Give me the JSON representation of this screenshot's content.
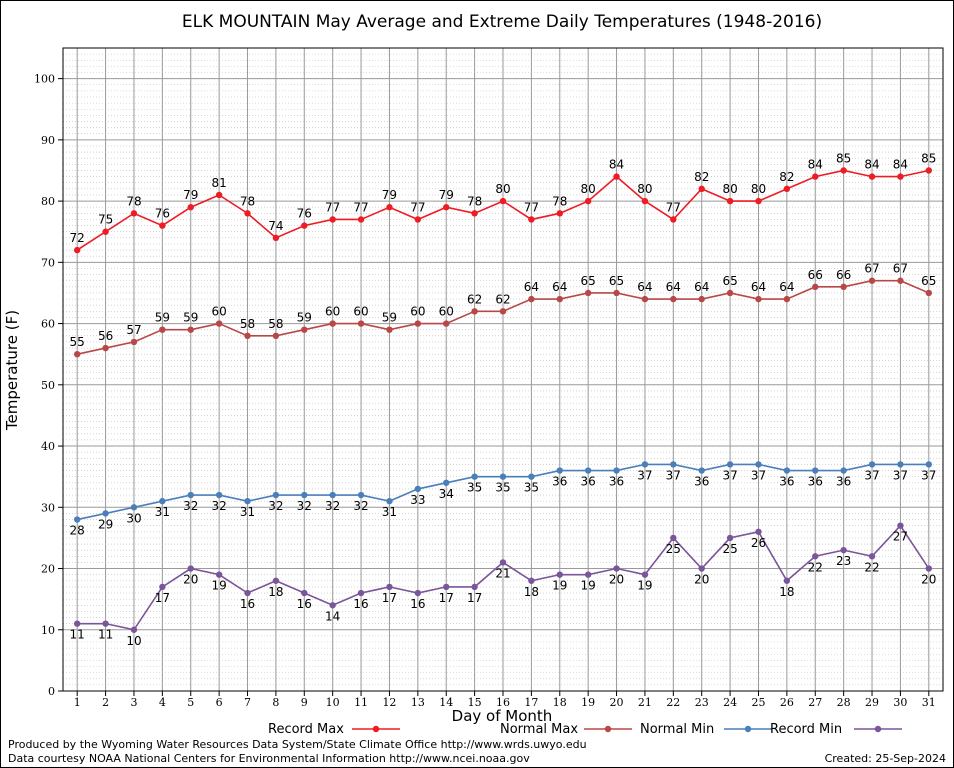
{
  "chart_data": {
    "type": "line",
    "title": "ELK MOUNTAIN May Average and Extreme Daily Temperatures (1948-2016)",
    "xlabel": "Day of Month",
    "ylabel": "Temperature (F)",
    "xlim": [
      0.5,
      31.5
    ],
    "ylim": [
      0,
      105
    ],
    "y_ticks": [
      0,
      10,
      20,
      30,
      40,
      50,
      60,
      70,
      80,
      90,
      100
    ],
    "x": [
      1,
      2,
      3,
      4,
      5,
      6,
      7,
      8,
      9,
      10,
      11,
      12,
      13,
      14,
      15,
      16,
      17,
      18,
      19,
      20,
      21,
      22,
      23,
      24,
      25,
      26,
      27,
      28,
      29,
      30,
      31
    ],
    "grid": true,
    "legend_position": "bottom",
    "series": [
      {
        "name": "Record Max",
        "color": "#ee1c24",
        "label_position": "above",
        "values": [
          72,
          75,
          78,
          76,
          79,
          81,
          78,
          74,
          76,
          77,
          77,
          79,
          77,
          79,
          78,
          80,
          77,
          78,
          80,
          84,
          80,
          77,
          82,
          80,
          80,
          82,
          84,
          85,
          84,
          84,
          85
        ]
      },
      {
        "name": "Normal Max",
        "color": "#b84848",
        "label_position": "above",
        "values": [
          55,
          56,
          57,
          59,
          59,
          60,
          58,
          58,
          59,
          60,
          60,
          59,
          60,
          60,
          62,
          62,
          64,
          64,
          65,
          65,
          64,
          64,
          64,
          65,
          64,
          64,
          66,
          66,
          67,
          67,
          65
        ]
      },
      {
        "name": "Normal Min",
        "color": "#4a7fba",
        "label_position": "below",
        "values": [
          28,
          29,
          30,
          31,
          32,
          32,
          31,
          32,
          32,
          32,
          32,
          31,
          33,
          34,
          35,
          35,
          35,
          36,
          36,
          36,
          37,
          37,
          36,
          37,
          37,
          36,
          36,
          36,
          37,
          37,
          37
        ]
      },
      {
        "name": "Record Min",
        "color": "#7a559a",
        "label_position": "below",
        "values": [
          11,
          11,
          10,
          17,
          20,
          19,
          16,
          18,
          16,
          14,
          16,
          17,
          16,
          17,
          17,
          21,
          18,
          19,
          19,
          20,
          19,
          25,
          20,
          25,
          26,
          18,
          22,
          23,
          22,
          27,
          20
        ]
      }
    ]
  },
  "footer": {
    "credit_line_1": "Produced by the Wyoming Water Resources Data System/State Climate Office http://www.wrds.uwyo.edu",
    "credit_line_2": "Data courtesy NOAA National Centers for Environmental Information http://www.ncei.noaa.gov",
    "created": "Created:  25-Sep-2024"
  }
}
